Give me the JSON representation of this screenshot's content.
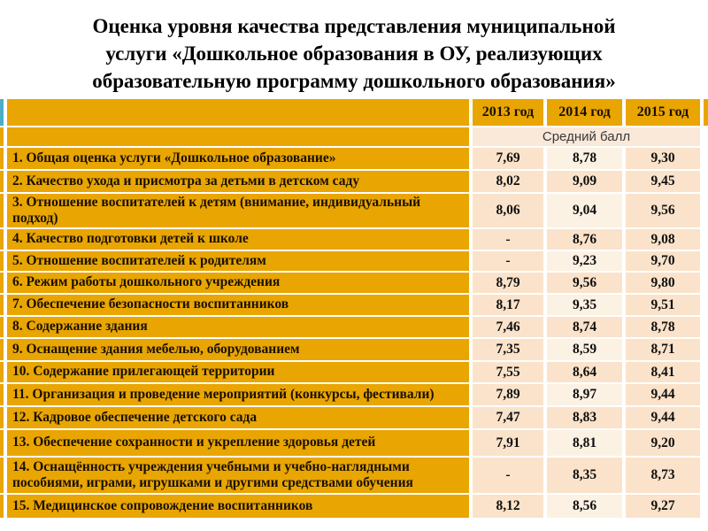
{
  "slide": {
    "title_lines": [
      "Оценка уровня качества представления муниципальной",
      "услуги «Дошкольное образования в ОУ, реализующих",
      "образовательную программу дошкольного образования»"
    ]
  },
  "table": {
    "colors": {
      "header_orange": "#E9A502",
      "corner_teal": "#4BACC6",
      "cell_peach": "#FAE3CA",
      "cell_light": "#FCF2E3",
      "subheader_bg": "#FAE8D8"
    },
    "columns": [
      "2013 год",
      "2014 год",
      "2015 год"
    ],
    "subheader": "Средний балл",
    "rows": [
      {
        "label": "1. Общая оценка услуги «Дошкольное образование»",
        "values": [
          "7,69",
          "8,78",
          "9,30"
        ]
      },
      {
        "label": "2. Качество ухода и присмотра за детьми в детском саду",
        "values": [
          "8,02",
          "9,09",
          "9,45"
        ]
      },
      {
        "label": "3. Отношение воспитателей к детям (внимание, индивидуальный подход)",
        "values": [
          "8,06",
          "9,04",
          "9,56"
        ]
      },
      {
        "label": "4. Качество подготовки детей к школе",
        "values": [
          "-",
          "8,76",
          "9,08"
        ]
      },
      {
        "label": "5. Отношение воспитателей к родителям",
        "values": [
          "-",
          "9,23",
          "9,70"
        ]
      },
      {
        "label": "6. Режим работы дошкольного учреждения",
        "values": [
          "8,79",
          "9,56",
          "9,80"
        ]
      },
      {
        "label": "7. Обеспечение безопасности воспитанников",
        "values": [
          "8,17",
          "9,35",
          "9,51"
        ]
      },
      {
        "label": "8. Содержание здания",
        "values": [
          "7,46",
          "8,74",
          "8,78"
        ]
      },
      {
        "label": "9. Оснащение здания мебелью, оборудованием",
        "values": [
          "7,35",
          "8,59",
          "8,71"
        ]
      },
      {
        "label": "10. Содержание прилегающей территории",
        "values": [
          "7,55",
          "8,64",
          "8,41"
        ]
      },
      {
        "label": "11. Организация и проведение мероприятий (конкурсы, фестивали)",
        "values": [
          "7,89",
          "8,97",
          "9,44"
        ]
      },
      {
        "label": "12. Кадровое обеспечение детского сада",
        "values": [
          "7,47",
          "8,83",
          "9,44"
        ]
      },
      {
        "label": "13.  Обеспечение сохранности и укрепление здоровья детей",
        "values": [
          "7,91",
          "8,81",
          "9,20"
        ]
      },
      {
        "label": "14. Оснащённость учреждения учебными и учебно-наглядными пособиями, играми, игрушками и другими средствами обучения",
        "values": [
          "-",
          "8,35",
          "8,73"
        ]
      },
      {
        "label": "15. Медицинское сопровождение воспитанников",
        "values": [
          "8,12",
          "8,56",
          "9,27"
        ]
      }
    ]
  }
}
